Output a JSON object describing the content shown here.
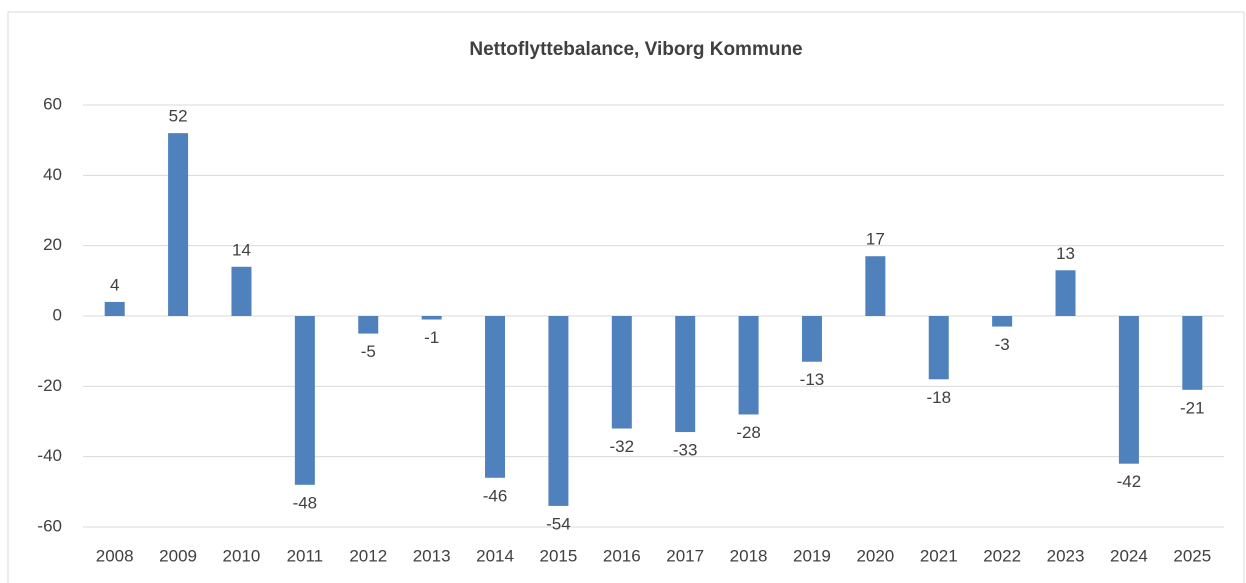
{
  "chart_data": {
    "type": "bar",
    "title": "Nettoflyttebalance, Viborg Kommune",
    "categories": [
      "2008",
      "2009",
      "2010",
      "2011",
      "2012",
      "2013",
      "2014",
      "2015",
      "2016",
      "2017",
      "2018",
      "2019",
      "2020",
      "2021",
      "2022",
      "2023",
      "2024",
      "2025"
    ],
    "values": [
      4,
      52,
      14,
      -48,
      -5,
      -1,
      -46,
      -54,
      -32,
      -33,
      -28,
      -13,
      17,
      -18,
      -3,
      13,
      -42,
      -21
    ],
    "color": "#4f81bd",
    "ylim": [
      -60,
      60
    ],
    "yticks": [
      -60,
      -40,
      -20,
      0,
      20,
      40,
      60
    ],
    "grid": true
  }
}
